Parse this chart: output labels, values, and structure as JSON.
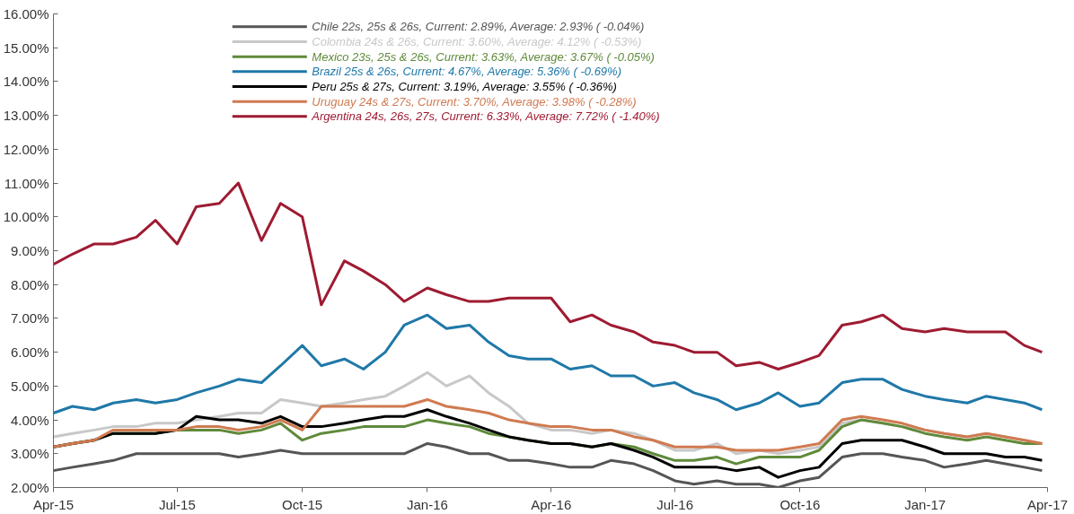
{
  "chart_data": {
    "type": "line",
    "x": [
      "2015-04-01",
      "2015-04-15",
      "2015-05-01",
      "2015-05-15",
      "2015-06-01",
      "2015-06-15",
      "2015-07-01",
      "2015-07-15",
      "2015-08-01",
      "2015-08-15",
      "2015-09-01",
      "2015-09-15",
      "2015-10-01",
      "2015-10-15",
      "2015-11-01",
      "2015-11-15",
      "2015-12-01",
      "2015-12-15",
      "2016-01-01",
      "2016-01-15",
      "2016-02-01",
      "2016-02-15",
      "2016-03-01",
      "2016-03-15",
      "2016-04-01",
      "2016-04-15",
      "2016-05-01",
      "2016-05-15",
      "2016-06-01",
      "2016-06-15",
      "2016-07-01",
      "2016-07-15",
      "2016-08-01",
      "2016-08-15",
      "2016-09-01",
      "2016-09-15",
      "2016-10-01",
      "2016-10-15",
      "2016-11-01",
      "2016-11-15",
      "2016-12-01",
      "2016-12-15",
      "2017-01-01",
      "2017-01-15",
      "2017-02-01",
      "2017-02-15",
      "2017-03-01",
      "2017-03-15",
      "2017-03-28"
    ],
    "series": [
      {
        "name": "Chile 22s, 25s & 26s, Current: 2.89%, Average: 2.93% ( -0.04%)",
        "color": "#555555",
        "values": [
          2.5,
          2.6,
          2.7,
          2.8,
          3.0,
          3.0,
          3.0,
          3.0,
          3.0,
          2.9,
          3.0,
          3.1,
          3.0,
          3.0,
          3.0,
          3.0,
          3.0,
          3.0,
          3.3,
          3.2,
          3.0,
          3.0,
          2.8,
          2.8,
          2.7,
          2.6,
          2.6,
          2.8,
          2.7,
          2.5,
          2.2,
          2.1,
          2.2,
          2.1,
          2.1,
          2.0,
          2.2,
          2.3,
          2.9,
          3.0,
          3.0,
          2.9,
          2.8,
          2.6,
          2.7,
          2.8,
          2.7,
          2.6,
          2.5
        ]
      },
      {
        "name": "Colombia 24s & 26s, Current: 3.60%, Average: 4.12% ( -0.53%)",
        "color": "#c8c8c8",
        "values": [
          3.5,
          3.6,
          3.7,
          3.8,
          3.8,
          3.9,
          3.9,
          4.0,
          4.1,
          4.2,
          4.2,
          4.6,
          4.5,
          4.4,
          4.5,
          4.6,
          4.7,
          5.0,
          5.4,
          5.0,
          5.3,
          4.8,
          4.4,
          3.9,
          3.7,
          3.7,
          3.6,
          3.7,
          3.6,
          3.4,
          3.1,
          3.1,
          3.3,
          3.0,
          3.1,
          3.0,
          3.1,
          3.2,
          3.9,
          4.0,
          3.9,
          3.8,
          3.7,
          3.6,
          3.5,
          3.6,
          3.5,
          3.4,
          3.3
        ]
      },
      {
        "name": "Mexico 23s, 25s & 26s, Current: 3.63%, Average: 3.67% ( -0.05%)",
        "color": "#5f8a3a",
        "values": [
          3.2,
          3.3,
          3.4,
          3.6,
          3.6,
          3.6,
          3.7,
          3.7,
          3.7,
          3.6,
          3.7,
          3.9,
          3.4,
          3.6,
          3.7,
          3.8,
          3.8,
          3.8,
          4.0,
          3.9,
          3.8,
          3.6,
          3.5,
          3.4,
          3.3,
          3.3,
          3.2,
          3.3,
          3.2,
          3.0,
          2.8,
          2.8,
          2.9,
          2.7,
          2.9,
          2.9,
          2.9,
          3.1,
          3.8,
          4.0,
          3.9,
          3.8,
          3.6,
          3.5,
          3.4,
          3.5,
          3.4,
          3.3,
          3.3
        ]
      },
      {
        "name": "Brazil 25s & 26s, Current: 4.67%, Average: 5.36% ( -0.69%)",
        "color": "#1f78a8",
        "values": [
          4.2,
          4.4,
          4.3,
          4.5,
          4.6,
          4.5,
          4.6,
          4.8,
          5.0,
          5.2,
          5.1,
          5.6,
          6.2,
          5.6,
          5.8,
          5.5,
          6.0,
          6.8,
          7.1,
          6.7,
          6.8,
          6.3,
          5.9,
          5.8,
          5.8,
          5.5,
          5.6,
          5.3,
          5.3,
          5.0,
          5.1,
          4.8,
          4.6,
          4.3,
          4.5,
          4.8,
          4.4,
          4.5,
          5.1,
          5.2,
          5.2,
          4.9,
          4.7,
          4.6,
          4.5,
          4.7,
          4.6,
          4.5,
          4.3
        ]
      },
      {
        "name": "Peru 25s & 27s, Current: 3.19%, Average: 3.55% ( -0.36%)",
        "color": "#000000",
        "values": [
          3.2,
          3.3,
          3.4,
          3.6,
          3.6,
          3.6,
          3.7,
          4.1,
          4.0,
          4.0,
          3.9,
          4.1,
          3.8,
          3.8,
          3.9,
          4.0,
          4.1,
          4.1,
          4.3,
          4.1,
          3.9,
          3.7,
          3.5,
          3.4,
          3.3,
          3.3,
          3.2,
          3.3,
          3.1,
          2.9,
          2.6,
          2.6,
          2.6,
          2.5,
          2.6,
          2.3,
          2.5,
          2.6,
          3.3,
          3.4,
          3.4,
          3.4,
          3.2,
          3.0,
          3.0,
          3.0,
          2.9,
          2.9,
          2.8
        ]
      },
      {
        "name": "Uruguay 24s & 27s, Current: 3.70%, Average: 3.98% ( -0.28%)",
        "color": "#d07a50",
        "values": [
          3.2,
          3.3,
          3.4,
          3.7,
          3.7,
          3.7,
          3.7,
          3.8,
          3.8,
          3.7,
          3.8,
          4.0,
          3.7,
          4.4,
          4.4,
          4.4,
          4.4,
          4.4,
          4.6,
          4.4,
          4.3,
          4.2,
          4.0,
          3.9,
          3.8,
          3.8,
          3.7,
          3.7,
          3.5,
          3.4,
          3.2,
          3.2,
          3.2,
          3.1,
          3.1,
          3.1,
          3.2,
          3.3,
          4.0,
          4.1,
          4.0,
          3.9,
          3.7,
          3.6,
          3.5,
          3.6,
          3.5,
          3.4,
          3.3
        ]
      },
      {
        "name": "Argentina 24s, 26s, 27s, Current: 6.33%, Average: 7.72% ( -1.40%)",
        "color": "#9e1b32",
        "values": [
          8.6,
          8.9,
          9.2,
          9.2,
          9.4,
          9.9,
          9.2,
          10.3,
          10.4,
          11.0,
          9.3,
          10.4,
          10.0,
          7.4,
          8.7,
          8.4,
          8.0,
          7.5,
          7.9,
          7.7,
          7.5,
          7.5,
          7.6,
          7.6,
          7.6,
          6.9,
          7.1,
          6.8,
          6.6,
          6.3,
          6.2,
          6.0,
          6.0,
          5.6,
          5.7,
          5.5,
          5.7,
          5.9,
          6.8,
          6.9,
          7.1,
          6.7,
          6.6,
          6.7,
          6.6,
          6.6,
          6.6,
          6.2,
          6.0
        ]
      }
    ],
    "xlim": [
      "2015-04-01",
      "2017-04-01"
    ],
    "xticks": [
      {
        "value": "2015-04-01",
        "label": "Apr-15"
      },
      {
        "value": "2015-07-01",
        "label": "Jul-15"
      },
      {
        "value": "2015-10-01",
        "label": "Oct-15"
      },
      {
        "value": "2016-01-01",
        "label": "Jan-16"
      },
      {
        "value": "2016-04-01",
        "label": "Apr-16"
      },
      {
        "value": "2016-07-01",
        "label": "Jul-16"
      },
      {
        "value": "2016-10-01",
        "label": "Oct-16"
      },
      {
        "value": "2017-01-01",
        "label": "Jan-17"
      },
      {
        "value": "2017-04-01",
        "label": "Apr-17"
      }
    ],
    "ylim": [
      2,
      16
    ],
    "yticks": [
      {
        "value": 2,
        "label": "2.00%"
      },
      {
        "value": 3,
        "label": "3.00%"
      },
      {
        "value": 4,
        "label": "4.00%"
      },
      {
        "value": 5,
        "label": "5.00%"
      },
      {
        "value": 6,
        "label": "6.00%"
      },
      {
        "value": 7,
        "label": "7.00%"
      },
      {
        "value": 8,
        "label": "8.00%"
      },
      {
        "value": 9,
        "label": "9.00%"
      },
      {
        "value": 10,
        "label": "10.00%"
      },
      {
        "value": 11,
        "label": "11.00%"
      },
      {
        "value": 12,
        "label": "12.00%"
      },
      {
        "value": 13,
        "label": "13.00%"
      },
      {
        "value": 14,
        "label": "14.00%"
      },
      {
        "value": 15,
        "label": "15.00%"
      },
      {
        "value": 16,
        "label": "16.00%"
      }
    ],
    "grid": false,
    "legend": "top",
    "marker": "none",
    "line_style": "solid"
  }
}
